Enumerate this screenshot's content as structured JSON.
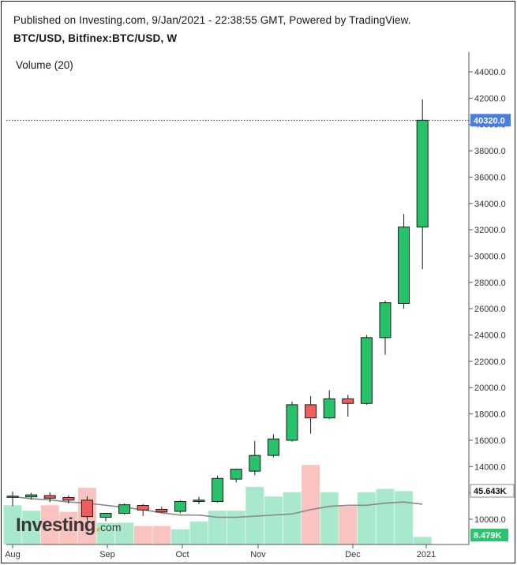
{
  "header": {
    "published": "Published on Investing.com, 9/Jan/2021 - 22:38:55 GMT, Powered by TradingView.",
    "symbol": "BTC/USD, Bitfinex:BTC/USD, W"
  },
  "volume_label": "Volume (20)",
  "watermark": {
    "brand": "Investing",
    "domain": "com"
  },
  "colors": {
    "up": "#26c26a",
    "down": "#f25c5c",
    "vol_up": "#a8e8cc",
    "vol_down": "#f9c3bf",
    "ma": "#888888",
    "last_price_badge": "#4a7de0",
    "ma_badge": "#ffffff",
    "vol_badge": "#2bc46f"
  },
  "chart_data": {
    "type": "candlestick",
    "title": "BTC/USD, Bitfinex:BTC/USD, W",
    "price_ticks": [
      "10000.0",
      "12000.0",
      "14000.0",
      "16000.0",
      "18000.0",
      "20000.0",
      "22000.0",
      "24000.0",
      "26000.0",
      "28000.0",
      "30000.0",
      "32000.0",
      "34000.0",
      "36000.0",
      "38000.0",
      "40000.0",
      "42000.0",
      "44000.0"
    ],
    "price_range": [
      9000,
      45500
    ],
    "x_labels": [
      "Aug",
      "Sep",
      "Oct",
      "Nov",
      "Dec",
      "2021"
    ],
    "last_price": "40320.0",
    "ma_value_label": "45.643K",
    "volume_value_label": "8.479K",
    "candles": [
      {
        "o": 11700,
        "h": 12100,
        "l": 11000,
        "c": 11750
      },
      {
        "o": 11700,
        "h": 12000,
        "l": 11500,
        "c": 11850
      },
      {
        "o": 11800,
        "h": 12050,
        "l": 11300,
        "c": 11600
      },
      {
        "o": 11650,
        "h": 11800,
        "l": 11200,
        "c": 11450
      },
      {
        "o": 11450,
        "h": 11750,
        "l": 9900,
        "c": 10200
      },
      {
        "o": 10150,
        "h": 10500,
        "l": 9850,
        "c": 10450
      },
      {
        "o": 10450,
        "h": 11200,
        "l": 10350,
        "c": 11100
      },
      {
        "o": 11050,
        "h": 11150,
        "l": 10250,
        "c": 10700
      },
      {
        "o": 10750,
        "h": 10950,
        "l": 10500,
        "c": 10550
      },
      {
        "o": 10600,
        "h": 11450,
        "l": 10450,
        "c": 11350
      },
      {
        "o": 11350,
        "h": 11700,
        "l": 11150,
        "c": 11450
      },
      {
        "o": 11350,
        "h": 13300,
        "l": 11250,
        "c": 13100
      },
      {
        "o": 13050,
        "h": 13850,
        "l": 12800,
        "c": 13800
      },
      {
        "o": 13650,
        "h": 15950,
        "l": 13350,
        "c": 14850
      },
      {
        "o": 14850,
        "h": 16450,
        "l": 14700,
        "c": 16100
      },
      {
        "o": 16000,
        "h": 18950,
        "l": 15900,
        "c": 18700
      },
      {
        "o": 18700,
        "h": 19350,
        "l": 16500,
        "c": 17700
      },
      {
        "o": 17700,
        "h": 19800,
        "l": 17600,
        "c": 19150
      },
      {
        "o": 19150,
        "h": 19450,
        "l": 17800,
        "c": 18800
      },
      {
        "o": 18800,
        "h": 24000,
        "l": 18700,
        "c": 23800
      },
      {
        "o": 23800,
        "h": 26600,
        "l": 22500,
        "c": 26450
      },
      {
        "o": 26400,
        "h": 33200,
        "l": 26000,
        "c": 32200
      },
      {
        "o": 32200,
        "h": 41900,
        "l": 29000,
        "c": 40320
      }
    ],
    "volume": [
      36,
      31,
      36,
      30,
      52,
      20,
      20,
      17,
      17,
      14,
      21,
      31,
      31,
      53,
      44,
      48,
      73,
      48,
      35,
      48,
      51,
      49,
      7
    ],
    "volume_ma": [
      44,
      42,
      41,
      39,
      38,
      36,
      34,
      32,
      29,
      27,
      27,
      25,
      25,
      26,
      27,
      28,
      32,
      35,
      36,
      36,
      38,
      39,
      37
    ]
  }
}
